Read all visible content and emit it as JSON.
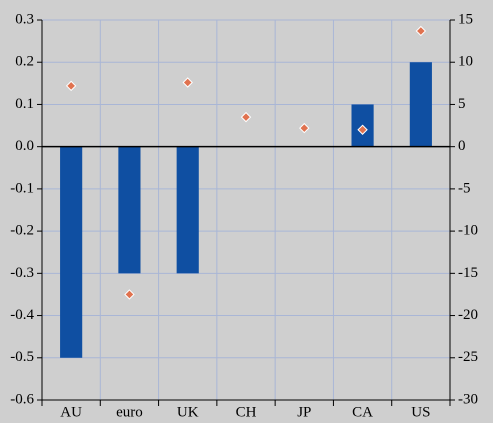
{
  "chart_data": {
    "type": "bar",
    "categories": [
      "AU",
      "euro",
      "UK",
      "CH",
      "JP",
      "CA",
      "US"
    ],
    "series": [
      {
        "type": "bar",
        "color": "#0f4fa2",
        "values": [
          -0.5,
          -0.3,
          -0.3,
          0,
          0,
          0.1,
          0.2
        ]
      },
      {
        "type": "scatter",
        "axis": "y2",
        "color": "#e0724f",
        "values": [
          7.2,
          -17.5,
          7.6,
          3.5,
          2.2,
          2.0,
          13.7
        ]
      }
    ],
    "ylim": [
      -0.6,
      0.3
    ],
    "yticks": [
      0.3,
      0.2,
      0.1,
      {
        "value": 0,
        "label": "0.0"
      },
      -0.1,
      -0.2,
      -0.3,
      -0.4,
      -0.5,
      -0.6
    ],
    "y2lim": [
      -30,
      15
    ],
    "y2ticks": [
      15,
      10,
      5,
      0,
      -5,
      -10,
      -15,
      -20,
      -25,
      -30
    ],
    "grid": true
  }
}
